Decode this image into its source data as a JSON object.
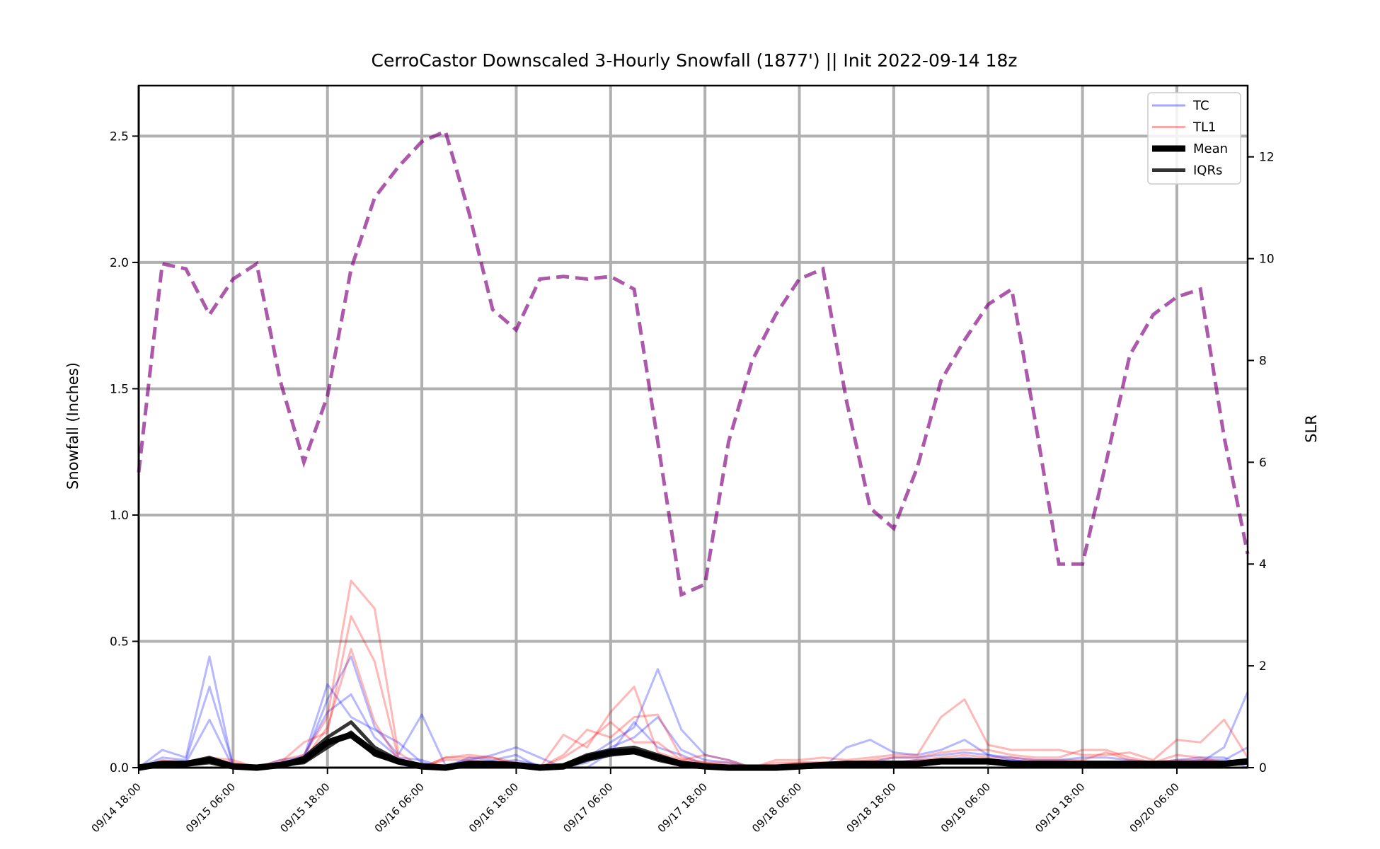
{
  "chart_data": {
    "type": "line",
    "title": "CerroCastor Downscaled 3-Hourly Snowfall (1877') || Init 2022-09-14 18z",
    "ylabel": "Snowfall (Inches)",
    "y2label": "SLR",
    "ylim": [
      0,
      2.7
    ],
    "y2lim": [
      0,
      13.4
    ],
    "yticks": [
      "0.0",
      "0.5",
      "1.0",
      "1.5",
      "2.0",
      "2.5"
    ],
    "y2ticks": [
      "0",
      "2",
      "4",
      "6",
      "8",
      "10",
      "12"
    ],
    "xticks": [
      "09/14 18:00",
      "09/15 06:00",
      "09/15 18:00",
      "09/16 06:00",
      "09/16 18:00",
      "09/17 06:00",
      "09/17 18:00",
      "09/18 06:00",
      "09/18 18:00",
      "09/19 06:00",
      "09/19 18:00",
      "09/20 06:00"
    ],
    "x_start": "2022-09-14 18:00",
    "x_step_hours": 3,
    "grid": true,
    "legend_position": "top-right",
    "legend": [
      "TC",
      "TL1",
      "Mean",
      "IQRs"
    ],
    "colors": {
      "TC": "#0000ff",
      "TL1": "#ff0000",
      "Mean": "#000000",
      "IQRs": "#000000",
      "SLR": "#800080"
    },
    "slr": [
      5.8,
      9.9,
      9.8,
      8.9,
      9.6,
      9.9,
      7.6,
      6.0,
      7.3,
      9.8,
      11.2,
      11.8,
      12.3,
      12.5,
      10.9,
      9.0,
      8.6,
      9.6,
      9.65,
      9.6,
      9.65,
      9.4,
      6.4,
      3.4,
      3.6,
      6.4,
      8.0,
      8.9,
      9.6,
      9.8,
      7.2,
      5.1,
      4.7,
      5.9,
      7.6,
      8.4,
      9.1,
      9.4,
      6.8,
      4.0,
      4.0,
      6.0,
      8.1,
      8.9,
      9.25,
      9.4,
      6.5,
      4.2
    ],
    "series": [
      {
        "name": "TC",
        "values": [
          0.0,
          0.07,
          0.04,
          0.44,
          0.0,
          0.0,
          0.03,
          0.04,
          0.33,
          0.2,
          0.15,
          0.1,
          0.02,
          0.0,
          0.04,
          0.03,
          0.05,
          0.0,
          0.0,
          0.04,
          0.1,
          0.16,
          0.39,
          0.15,
          0.05,
          0.03,
          0.0,
          0.0,
          0.0,
          0.02,
          0.02,
          0.02,
          0.04,
          0.04,
          0.05,
          0.06,
          0.05,
          0.04,
          0.03,
          0.03,
          0.04,
          0.04,
          0.03,
          0.02,
          0.03,
          0.04,
          0.04,
          0.0
        ]
      },
      {
        "name": "TC",
        "values": [
          0.0,
          0.04,
          0.03,
          0.32,
          0.01,
          0.0,
          0.02,
          0.03,
          0.27,
          0.44,
          0.16,
          0.05,
          0.21,
          0.01,
          0.03,
          0.05,
          0.08,
          0.04,
          0.0,
          0.0,
          0.06,
          0.18,
          0.08,
          0.05,
          0.01,
          0.0,
          0.0,
          0.0,
          0.0,
          0.0,
          0.08,
          0.11,
          0.06,
          0.05,
          0.07,
          0.11,
          0.05,
          0.03,
          0.02,
          0.01,
          0.02,
          0.02,
          0.01,
          0.02,
          0.01,
          0.02,
          0.08,
          0.3
        ]
      },
      {
        "name": "TC",
        "values": [
          0.0,
          0.02,
          0.02,
          0.19,
          0.0,
          0.0,
          0.01,
          0.05,
          0.22,
          0.29,
          0.12,
          0.04,
          0.03,
          0.0,
          0.02,
          0.02,
          0.03,
          0.01,
          0.0,
          0.02,
          0.08,
          0.12,
          0.2,
          0.07,
          0.03,
          0.02,
          0.0,
          0.0,
          0.0,
          0.0,
          0.02,
          0.02,
          0.02,
          0.03,
          0.03,
          0.04,
          0.03,
          0.03,
          0.02,
          0.02,
          0.02,
          0.02,
          0.02,
          0.01,
          0.02,
          0.03,
          0.03,
          0.08
        ]
      },
      {
        "name": "TL1",
        "values": [
          0.0,
          0.03,
          0.02,
          0.04,
          0.03,
          0.0,
          0.03,
          0.05,
          0.2,
          0.74,
          0.63,
          0.06,
          0.0,
          0.04,
          0.05,
          0.04,
          0.01,
          0.0,
          0.13,
          0.08,
          0.22,
          0.32,
          0.06,
          0.03,
          0.05,
          0.03,
          0.0,
          0.03,
          0.03,
          0.04,
          0.03,
          0.04,
          0.05,
          0.05,
          0.2,
          0.27,
          0.09,
          0.07,
          0.07,
          0.07,
          0.05,
          0.05,
          0.06,
          0.03,
          0.11,
          0.1,
          0.19,
          0.04
        ]
      },
      {
        "name": "TL1",
        "values": [
          0.0,
          0.02,
          0.02,
          0.03,
          0.02,
          0.0,
          0.02,
          0.1,
          0.14,
          0.6,
          0.42,
          0.04,
          0.0,
          0.04,
          0.04,
          0.04,
          0.02,
          0.0,
          0.05,
          0.15,
          0.12,
          0.2,
          0.21,
          0.04,
          0.02,
          0.02,
          0.0,
          0.02,
          0.02,
          0.02,
          0.02,
          0.03,
          0.04,
          0.04,
          0.06,
          0.07,
          0.07,
          0.05,
          0.04,
          0.04,
          0.07,
          0.07,
          0.04,
          0.02,
          0.05,
          0.04,
          0.02,
          0.03
        ]
      },
      {
        "name": "TL1",
        "values": [
          0.0,
          0.01,
          0.01,
          0.02,
          0.01,
          0.0,
          0.01,
          0.03,
          0.16,
          0.47,
          0.18,
          0.03,
          0.0,
          0.03,
          0.03,
          0.02,
          0.01,
          0.0,
          0.04,
          0.1,
          0.18,
          0.1,
          0.1,
          0.03,
          0.02,
          0.01,
          0.0,
          0.01,
          0.02,
          0.02,
          0.02,
          0.02,
          0.02,
          0.03,
          0.04,
          0.05,
          0.04,
          0.04,
          0.03,
          0.03,
          0.03,
          0.06,
          0.03,
          0.02,
          0.03,
          0.03,
          0.02,
          0.02
        ]
      },
      {
        "name": "IQRs",
        "values": [
          0.0,
          0.01,
          0.01,
          0.02,
          0.0,
          0.0,
          0.01,
          0.02,
          0.08,
          0.14,
          0.05,
          0.02,
          0.0,
          0.0,
          0.01,
          0.01,
          0.01,
          0.0,
          0.0,
          0.03,
          0.05,
          0.06,
          0.03,
          0.01,
          0.0,
          0.0,
          0.0,
          0.0,
          0.0,
          0.01,
          0.01,
          0.01,
          0.01,
          0.01,
          0.02,
          0.02,
          0.02,
          0.01,
          0.01,
          0.01,
          0.01,
          0.01,
          0.01,
          0.01,
          0.01,
          0.01,
          0.01,
          0.02
        ]
      },
      {
        "name": "IQRs",
        "values": [
          0.0,
          0.02,
          0.02,
          0.04,
          0.01,
          0.0,
          0.01,
          0.04,
          0.12,
          0.18,
          0.08,
          0.03,
          0.01,
          0.0,
          0.02,
          0.02,
          0.01,
          0.0,
          0.01,
          0.05,
          0.07,
          0.08,
          0.05,
          0.02,
          0.01,
          0.0,
          0.0,
          0.0,
          0.01,
          0.01,
          0.02,
          0.02,
          0.02,
          0.02,
          0.03,
          0.03,
          0.03,
          0.02,
          0.02,
          0.02,
          0.02,
          0.02,
          0.02,
          0.02,
          0.02,
          0.02,
          0.02,
          0.03
        ]
      },
      {
        "name": "Mean",
        "values": [
          0.0,
          0.015,
          0.015,
          0.03,
          0.005,
          0.0,
          0.01,
          0.03,
          0.1,
          0.13,
          0.06,
          0.025,
          0.005,
          0.0,
          0.015,
          0.015,
          0.01,
          0.0,
          0.005,
          0.04,
          0.06,
          0.065,
          0.04,
          0.015,
          0.005,
          0.0,
          0.0,
          0.0,
          0.005,
          0.01,
          0.015,
          0.015,
          0.015,
          0.015,
          0.025,
          0.025,
          0.025,
          0.015,
          0.015,
          0.015,
          0.015,
          0.015,
          0.015,
          0.015,
          0.015,
          0.015,
          0.015,
          0.025
        ]
      }
    ]
  }
}
